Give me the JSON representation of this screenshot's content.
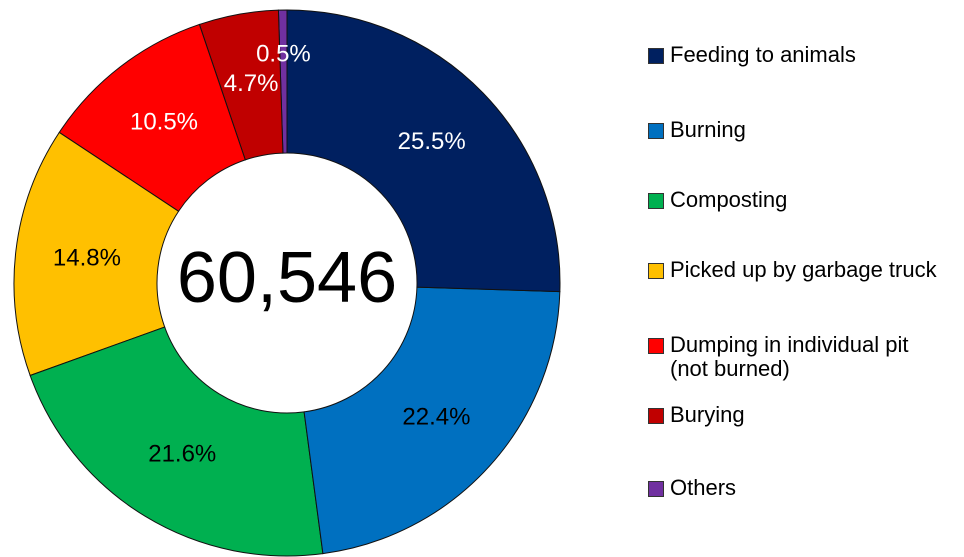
{
  "chart_data": {
    "type": "donut",
    "categories": [
      "Feeding to animals",
      "Burning",
      "Composting",
      "Picked up by garbage truck",
      "Dumping in individual pit\n(not burned)",
      "Burying",
      "Others"
    ],
    "values": [
      25.5,
      22.4,
      21.6,
      14.8,
      10.5,
      4.7,
      0.5
    ],
    "value_labels": [
      "25.5%",
      "22.4%",
      "21.6%",
      "14.8%",
      "10.5%",
      "4.7%",
      "0.5%"
    ],
    "colors": [
      "#002060",
      "#0070c0",
      "#00b050",
      "#ffc000",
      "#ff0000",
      "#c00000",
      "#7030a0"
    ],
    "label_colors": [
      "#ffffff",
      "#000000",
      "#000000",
      "#000000",
      "#ffffff",
      "#ffffff",
      "#ffffff"
    ],
    "center_label": "60,546",
    "legend": "right"
  }
}
